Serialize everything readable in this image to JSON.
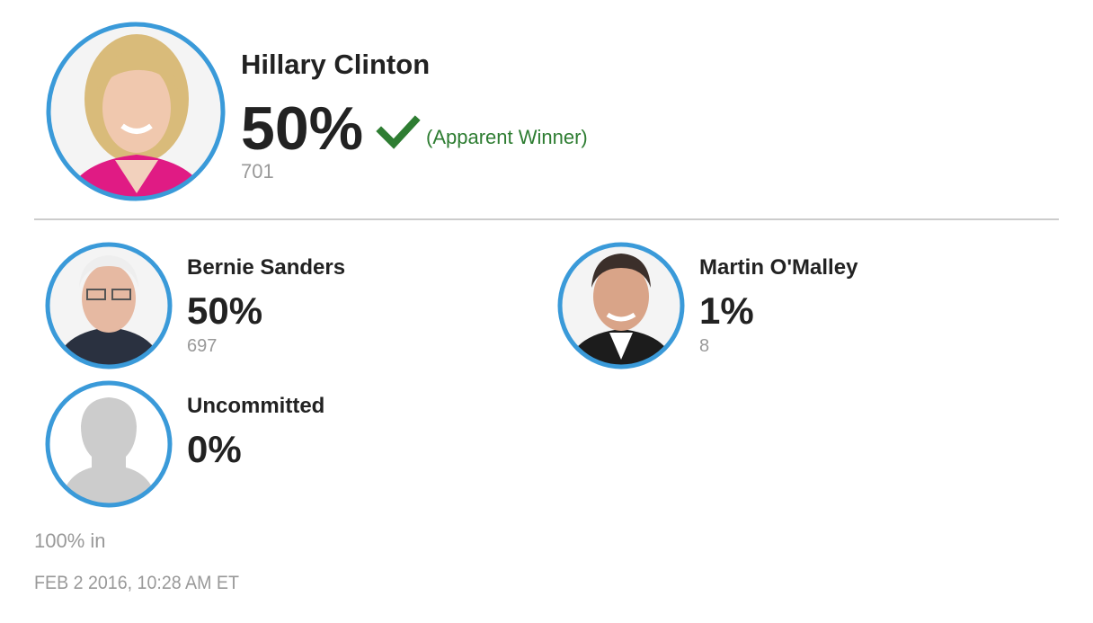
{
  "winner": {
    "name": "Hillary Clinton",
    "percent": "50%",
    "status": "(Apparent Winner)",
    "votes": 701
  },
  "candidates": [
    {
      "name": "Bernie Sanders",
      "percent": "50%",
      "votes": 697
    },
    {
      "name": "Martin O'Malley",
      "percent": "1%",
      "votes": 8
    },
    {
      "name": "Uncommitted",
      "percent": "0%"
    }
  ],
  "footer": {
    "reporting": "100% in",
    "timestamp": "FEB 2 2016, 10:28 AM ET"
  }
}
